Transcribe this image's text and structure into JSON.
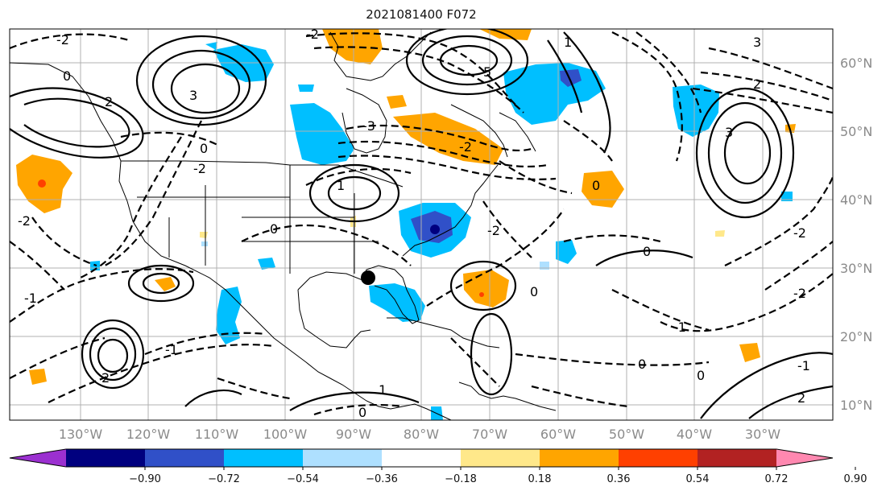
{
  "title": "2021081400 F072",
  "map": {
    "longitude_labels": [
      "130°W",
      "120°W",
      "110°W",
      "100°W",
      "90°W",
      "80°W",
      "70°W",
      "60°W",
      "50°W",
      "40°W",
      "30°W"
    ],
    "latitude_labels": [
      "60°N",
      "50°N",
      "40°N",
      "30°N",
      "20°N",
      "10°N"
    ],
    "contour_labels": [
      "-2",
      "2",
      "3",
      "0",
      "-1",
      "1",
      "5",
      "-3"
    ]
  },
  "colorbar": {
    "ticks": [
      "−0.90",
      "−0.72",
      "−0.54",
      "−0.36",
      "−0.18",
      "0.18",
      "0.36",
      "0.54",
      "0.72",
      "0.90"
    ],
    "colors": [
      "#9b30d0",
      "#00007f",
      "#3050c8",
      "#00bfff",
      "#aee0ff",
      "#ffffff",
      "#ffe88a",
      "#ffa500",
      "#ff4000",
      "#b22222",
      "#ff88b0"
    ]
  }
}
